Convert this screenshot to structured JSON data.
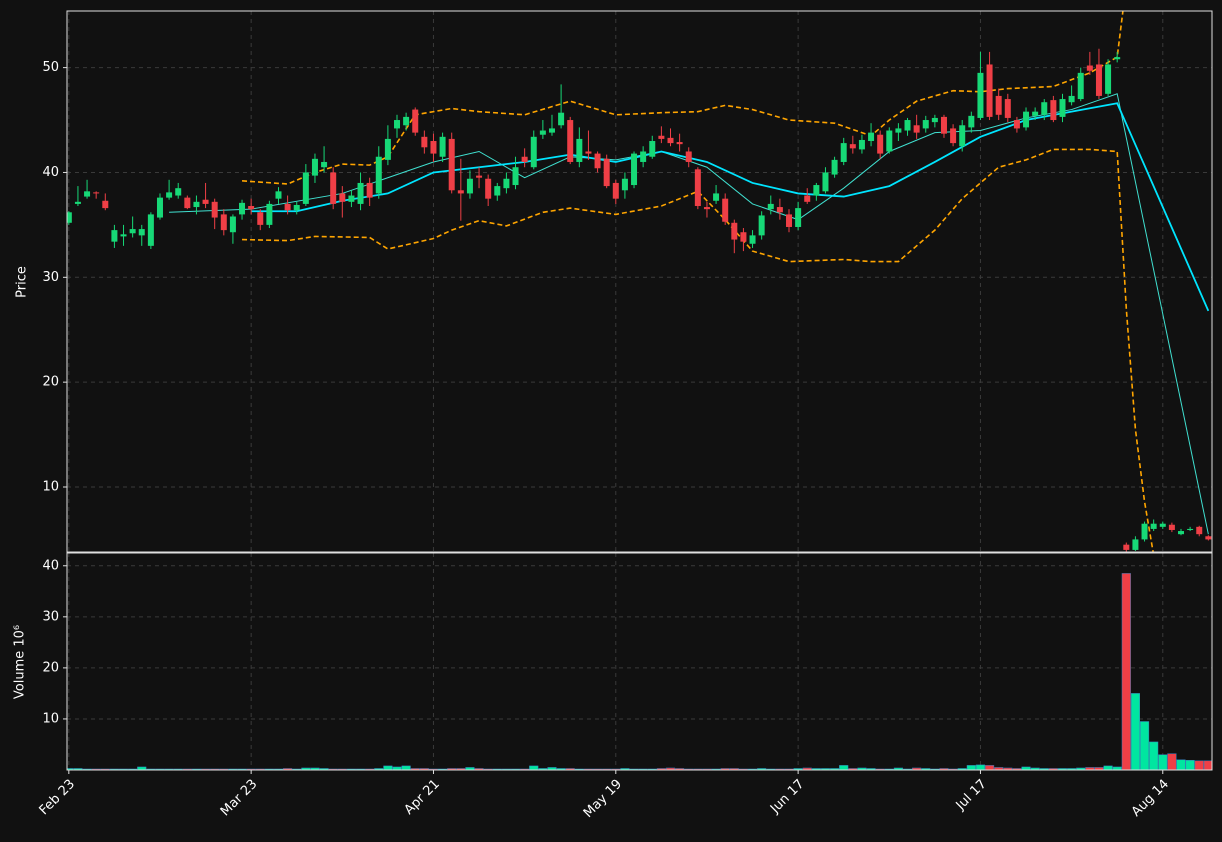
{
  "chart_data": [
    {
      "type": "candlestick",
      "ylabel": "Price",
      "up_color": "#17d977",
      "down_color": "#ef3f46",
      "xlim": [
        -0.2,
        125.4
      ],
      "ylim": [
        3.8,
        55.4
      ],
      "yticks": [
        10,
        20,
        30,
        40,
        50
      ],
      "grid": true,
      "open": [
        35.2,
        37,
        37.7,
        38.1,
        37.3,
        33.4,
        33.9,
        34.2,
        34,
        33,
        35.7,
        37.6,
        37.8,
        37.6,
        36.7,
        37.4,
        37.2,
        36,
        34.3,
        36,
        36.8,
        36.2,
        35,
        37.5,
        37,
        36.4,
        37,
        39.7,
        40.5,
        40,
        38,
        37.2,
        37,
        39,
        38,
        41.2,
        44.2,
        44.5,
        46,
        43.4,
        43,
        41.5,
        43.2,
        38.3,
        38,
        39.7,
        39.4,
        37.8,
        38.5,
        38.8,
        41.5,
        40.5,
        43.6,
        43.8,
        44.5,
        45,
        41,
        42,
        41.8,
        41.3,
        39,
        38.3,
        38.8,
        41,
        41.5,
        43.5,
        43.3,
        42.9,
        42,
        40.3,
        36.7,
        37.3,
        37.5,
        35.2,
        34.3,
        33.2,
        34,
        36.5,
        36.7,
        36,
        34.8,
        37.8,
        37.8,
        38.2,
        39.8,
        41,
        42.7,
        42.2,
        43,
        43.6,
        42,
        43.8,
        44,
        44.5,
        44.2,
        44.8,
        45.3,
        44.2,
        42.5,
        44.3,
        45.2,
        50.3,
        47.3,
        47,
        45,
        44.3,
        45.4,
        45.5,
        46.9,
        45.3,
        46.7,
        47,
        50.2,
        50.3,
        47.5,
        50.8,
        4.5,
        4,
        5,
        6,
        6.2,
        6.4,
        5.5,
        5.9,
        6.2,
        5.3
      ],
      "high": [
        36.3,
        38.7,
        39.3,
        38.2,
        38,
        35,
        35,
        35.8,
        35,
        36.2,
        38,
        39.3,
        39,
        37.8,
        37.8,
        39,
        37.5,
        36.5,
        36,
        37.4,
        37.5,
        36.5,
        37.3,
        38.6,
        37.8,
        37.2,
        40.8,
        41.8,
        42.5,
        40.5,
        38.7,
        38.3,
        40,
        39.5,
        42.5,
        44.5,
        45.5,
        45.7,
        46.2,
        44,
        43.7,
        43.8,
        43.8,
        41.3,
        40.2,
        40.5,
        39.8,
        39,
        40,
        41.5,
        42.3,
        44,
        45,
        45.5,
        48.4,
        45.3,
        44.3,
        44,
        42,
        41.7,
        39.3,
        40,
        42,
        42.5,
        43.5,
        44.4,
        44.2,
        43.7,
        42.4,
        40.5,
        37.2,
        38.8,
        38,
        35.5,
        34.7,
        34.5,
        36.3,
        37.8,
        37.5,
        36.5,
        37.2,
        38.5,
        39,
        40.5,
        41.5,
        43.3,
        43.5,
        43.6,
        44.7,
        44,
        44.3,
        44.7,
        45.2,
        45.5,
        45.4,
        45.5,
        45.5,
        44.6,
        45,
        45.8,
        51.5,
        51.5,
        48,
        47.5,
        45.3,
        46.2,
        46.2,
        47,
        47.3,
        47.5,
        48.3,
        50,
        51.5,
        51.8,
        50.8,
        51.5,
        4.7,
        5.3,
        6.7,
        6.9,
        6.7,
        6.6,
        6,
        6.2,
        6.3,
        5.4
      ],
      "low": [
        35,
        36.8,
        37.5,
        37.5,
        36.4,
        32.8,
        33,
        33.8,
        33,
        32.7,
        35.5,
        37.4,
        37.5,
        36.5,
        36,
        36.6,
        34.6,
        34,
        33.2,
        35.5,
        36,
        34.5,
        34.7,
        37,
        36,
        36,
        36.8,
        39,
        40,
        36.5,
        35.7,
        36.7,
        36.4,
        36.8,
        37.5,
        40.7,
        43.3,
        44,
        43.5,
        41.8,
        41,
        41,
        38,
        35.4,
        37.5,
        38.5,
        36.8,
        37.3,
        38,
        38.4,
        40.5,
        40.3,
        43.2,
        43.5,
        44.2,
        40.8,
        40.5,
        41.2,
        40,
        38.5,
        37,
        37.5,
        38.5,
        40.5,
        41.3,
        42.8,
        42.5,
        42,
        40.5,
        36.5,
        35.7,
        37,
        35,
        32.3,
        32.5,
        32.8,
        33.6,
        36,
        35.5,
        34.3,
        34.5,
        37,
        37.3,
        38,
        39.5,
        40.7,
        41.8,
        41.8,
        42.5,
        41.3,
        41.8,
        43,
        43.5,
        43.2,
        43.8,
        44.3,
        43.3,
        42.5,
        42,
        43.8,
        45,
        45,
        45,
        44.8,
        43.8,
        44,
        45,
        45,
        44.8,
        44.8,
        46.4,
        46.8,
        49.3,
        47,
        47.3,
        50.5,
        3.8,
        3.9,
        4.8,
        5.8,
        6,
        5.7,
        5.4,
        5.8,
        5.3,
        4.9
      ],
      "close": [
        36.2,
        37.2,
        38.2,
        38,
        36.6,
        34.5,
        34.1,
        34.6,
        34.6,
        36,
        37.6,
        38.1,
        38.5,
        36.6,
        37.2,
        37,
        35.7,
        34.5,
        35.8,
        37.1,
        36.5,
        35,
        37,
        38.2,
        36.4,
        36.9,
        40,
        41.3,
        41,
        37,
        37.2,
        37.8,
        39,
        37.6,
        41.5,
        43.2,
        45,
        45.3,
        43.8,
        42.4,
        41.8,
        43.4,
        38.3,
        38,
        39.4,
        39.5,
        37.5,
        38.7,
        39.4,
        40.5,
        41,
        43.4,
        44,
        44.2,
        45.7,
        41,
        43.2,
        41.8,
        40.4,
        38.7,
        37.5,
        39.4,
        41.8,
        42,
        43,
        43.2,
        42.8,
        42.7,
        41,
        36.8,
        36.5,
        38,
        35.3,
        33.6,
        33.4,
        34,
        35.9,
        37,
        36.2,
        34.8,
        36.6,
        37.2,
        38.8,
        40,
        41.2,
        42.8,
        42.3,
        43.1,
        43.8,
        41.8,
        44,
        44.2,
        45,
        43.8,
        45,
        45.2,
        43.7,
        42.8,
        44.5,
        45.4,
        49.5,
        45.3,
        45.5,
        45.2,
        44.2,
        45.8,
        45.8,
        46.7,
        45,
        47,
        47.3,
        49.5,
        49.7,
        47.3,
        50.3,
        51,
        4,
        5,
        6.5,
        6.5,
        6.5,
        5.9,
        5.8,
        6,
        5.5,
        5
      ],
      "series": [
        {
          "color": "#40e0d0",
          "width": 1,
          "dashed": false,
          "x": [
            11,
            20,
            30,
            40,
            45,
            50,
            55,
            60,
            65,
            70,
            75,
            80,
            85,
            90,
            95,
            100,
            105,
            110,
            115,
            125
          ],
          "values": [
            36.2,
            36.5,
            38,
            41,
            42,
            39.5,
            41.5,
            41.2,
            42,
            40.5,
            37,
            35.5,
            38.5,
            42,
            43.8,
            44,
            45.2,
            46,
            47.5,
            5.5
          ]
        },
        {
          "color": "#00e5ff",
          "width": 1.8,
          "dashed": false,
          "x": [
            20,
            25,
            30,
            35,
            40,
            45,
            50,
            55,
            60,
            65,
            70,
            75,
            80,
            85,
            90,
            95,
            100,
            105,
            110,
            115,
            125
          ],
          "values": [
            36.3,
            36.3,
            37.3,
            38,
            40,
            40.5,
            41,
            41.7,
            41,
            42,
            41,
            39,
            38,
            37.7,
            38.7,
            41,
            43.4,
            45,
            45.8,
            46.6,
            26.8
          ]
        },
        {
          "color": "#ffa500",
          "width": 1.6,
          "dashed": true,
          "x": [
            19,
            24,
            27,
            30,
            33,
            35,
            38,
            42,
            45,
            50,
            55,
            60,
            65,
            69,
            72,
            75,
            79,
            84,
            88,
            90,
            93,
            97,
            100,
            103,
            108,
            112,
            115,
            116
          ],
          "values": [
            39.2,
            38.9,
            40,
            40.8,
            40.7,
            41.5,
            45.5,
            46.1,
            45.8,
            45.5,
            46.8,
            45.5,
            45.7,
            45.8,
            46.4,
            46,
            45,
            44.7,
            43.5,
            45,
            46.8,
            47.8,
            47.7,
            48,
            48.2,
            49.5,
            51,
            58
          ]
        },
        {
          "color": "#ffa500",
          "width": 1.6,
          "dashed": true,
          "x": [
            19,
            24,
            27,
            33,
            35,
            40,
            42,
            45,
            48,
            52,
            55,
            60,
            65,
            69,
            72,
            75,
            79,
            85,
            88,
            91,
            95,
            98,
            102,
            105,
            108,
            112,
            115,
            116,
            117,
            118,
            119
          ],
          "values": [
            33.6,
            33.5,
            33.9,
            33.8,
            32.7,
            33.7,
            34.5,
            35.4,
            34.9,
            36.2,
            36.6,
            36,
            36.8,
            38.2,
            35.5,
            32.5,
            31.5,
            31.7,
            31.5,
            31.5,
            34.5,
            37.5,
            40.5,
            41.2,
            42.2,
            42.2,
            42,
            27,
            15.5,
            8.6,
            3.5
          ]
        }
      ]
    },
    {
      "type": "bar",
      "ylabel": "Volume 10⁶",
      "up_color": "#00e6a0",
      "down_color": "#ef3f46",
      "xlim": [
        -0.2,
        125.4
      ],
      "ylim": [
        0,
        42.5
      ],
      "yticks": [
        10,
        20,
        30,
        40
      ],
      "grid": true,
      "xticks": [
        {
          "value": 0,
          "label": "Feb 23"
        },
        {
          "value": 20,
          "label": "Mar 23"
        },
        {
          "value": 40,
          "label": "Apr 21"
        },
        {
          "value": 60,
          "label": "May 19"
        },
        {
          "value": 80,
          "label": "Jun 17"
        },
        {
          "value": 100,
          "label": "Jul 17"
        },
        {
          "value": 120,
          "label": "Aug 14"
        }
      ],
      "values": [
        0.3,
        0.3,
        0.2,
        0.2,
        0.2,
        0.2,
        0.2,
        0.2,
        0.6,
        0.2,
        0.2,
        0.2,
        0.2,
        0.2,
        0.2,
        0.2,
        0.2,
        0.2,
        0.2,
        0.2,
        0.2,
        0.2,
        0.2,
        0.2,
        0.3,
        0.2,
        0.4,
        0.4,
        0.3,
        0.2,
        0.2,
        0.2,
        0.2,
        0.2,
        0.3,
        0.8,
        0.6,
        0.8,
        0.3,
        0.3,
        0.2,
        0.2,
        0.3,
        0.3,
        0.5,
        0.3,
        0.2,
        0.2,
        0.2,
        0.2,
        0.2,
        0.8,
        0.3,
        0.5,
        0.3,
        0.3,
        0.2,
        0.2,
        0.2,
        0.2,
        0.2,
        0.3,
        0.2,
        0.2,
        0.2,
        0.3,
        0.4,
        0.3,
        0.2,
        0.2,
        0.2,
        0.2,
        0.3,
        0.3,
        0.2,
        0.2,
        0.3,
        0.2,
        0.2,
        0.2,
        0.3,
        0.4,
        0.3,
        0.3,
        0.3,
        0.9,
        0.3,
        0.4,
        0.3,
        0.2,
        0.2,
        0.4,
        0.2,
        0.4,
        0.3,
        0.2,
        0.3,
        0.2,
        0.3,
        0.9,
        1,
        0.9,
        0.5,
        0.4,
        0.3,
        0.6,
        0.4,
        0.3,
        0.3,
        0.3,
        0.3,
        0.4,
        0.5,
        0.5,
        0.8,
        0.6,
        38.5,
        15,
        9.5,
        5.5,
        3,
        3.2,
        2,
        1.9,
        1.8,
        1.8
      ]
    }
  ]
}
